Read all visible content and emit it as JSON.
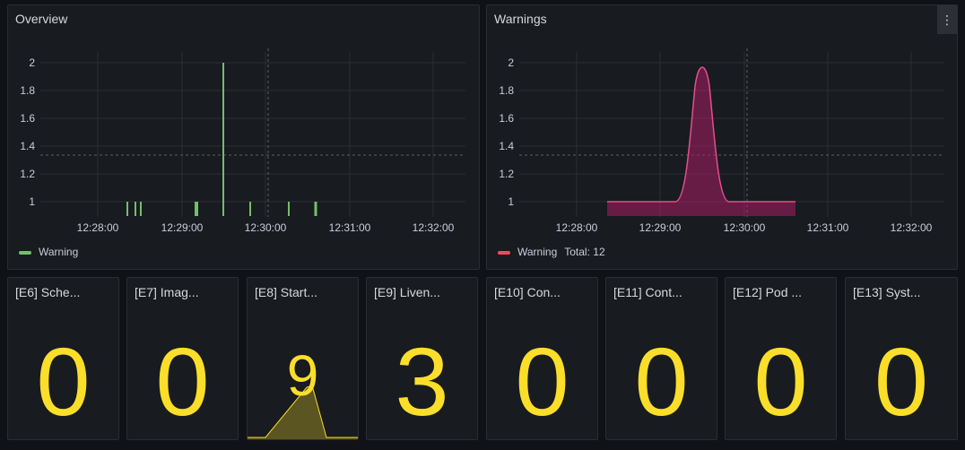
{
  "overview": {
    "title": "Overview",
    "legend": "Warning",
    "color": "#73bf69"
  },
  "warnings": {
    "title": "Warnings",
    "legend": "Warning",
    "total": "Total: 12",
    "color": "#f2495c",
    "menu_icon": "kebab-menu-icon"
  },
  "stats": [
    {
      "title": "[E6] Sche...",
      "value": "0"
    },
    {
      "title": "[E7] Imag...",
      "value": "0"
    },
    {
      "title": "[E8] Start...",
      "value": "9"
    },
    {
      "title": "[E9] Liven...",
      "value": "3"
    },
    {
      "title": "[E10] Con...",
      "value": "0"
    },
    {
      "title": "[E11] Cont...",
      "value": "0"
    },
    {
      "title": "[E12] Pod ...",
      "value": "0"
    },
    {
      "title": "[E13] Syst...",
      "value": "0"
    }
  ],
  "chart_data": [
    {
      "type": "bar",
      "title": "Overview",
      "series": [
        {
          "name": "Warning",
          "x": [
            "12:28:20",
            "12:28:25",
            "12:28:29",
            "12:28:50",
            "12:29:25",
            "12:29:30",
            "12:30:50",
            "12:30:13",
            "12:30:27"
          ],
          "values": [
            1,
            1,
            1,
            1,
            1,
            2,
            1,
            1,
            1
          ]
        }
      ],
      "x_ticks": [
        "12:28:00",
        "12:29:00",
        "12:30:00",
        "12:31:00",
        "12:32:00"
      ],
      "y_ticks": [
        "1",
        "1.2",
        "1.4",
        "1.6",
        "1.8",
        "2"
      ],
      "ylim": [
        0.9,
        2.05
      ]
    },
    {
      "type": "area",
      "title": "Warnings",
      "series": [
        {
          "name": "Warning",
          "total": 12
        }
      ],
      "x_ticks": [
        "12:28:00",
        "12:29:00",
        "12:30:00",
        "12:31:00",
        "12:32:00"
      ],
      "y_ticks": [
        "1",
        "1.2",
        "1.4",
        "1.6",
        "1.8",
        "2"
      ],
      "ylim": [
        0.9,
        2.05
      ]
    }
  ]
}
